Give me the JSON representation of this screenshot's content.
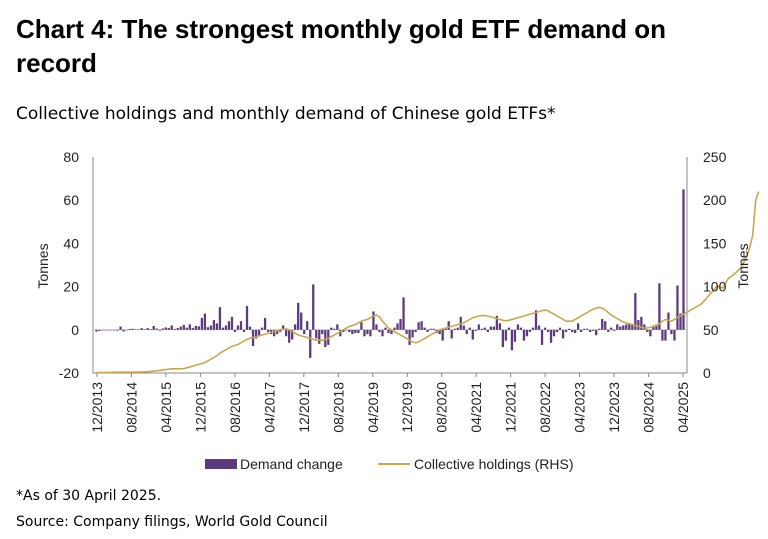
{
  "header": {
    "title": "Chart 4: The strongest monthly gold ETF demand on record",
    "subtitle": "Collective holdings and monthly demand of Chinese gold ETFs*"
  },
  "footer": {
    "footnote": "*As of 30 April 2025.",
    "source": "Source: Company filings, World Gold Council"
  },
  "colors": {
    "bar": "#5b3a7e",
    "line": "#c9a84c",
    "axis": "#888888"
  },
  "chart_data": {
    "type": "bar+line",
    "y_left": {
      "label": "Tonnes",
      "range": [
        -20,
        80
      ],
      "ticks": [
        -20,
        0,
        20,
        40,
        60,
        80
      ]
    },
    "y_right": {
      "label": "Tonnes",
      "range": [
        0,
        250
      ],
      "ticks": [
        0,
        50,
        100,
        150,
        200,
        250
      ]
    },
    "x_ticks": [
      "12/2013",
      "08/2014",
      "04/2015",
      "12/2015",
      "08/2016",
      "04/2017",
      "12/2017",
      "08/2018",
      "04/2019",
      "12/2019",
      "08/2020",
      "04/2021",
      "12/2021",
      "08/2022",
      "04/2023",
      "12/2023",
      "08/2024",
      "04/2025"
    ],
    "legend": [
      "Demand change",
      "Collective holdings (RHS)"
    ],
    "series": [
      {
        "name": "Demand change",
        "type": "bar",
        "axis": "left",
        "values": [
          -0.8,
          -0.5,
          -0.3,
          -0.2,
          -0.3,
          -0.2,
          -0.3,
          -0.4,
          1.5,
          -0.8,
          -0.2,
          0.4,
          0.5,
          0.2,
          0.2,
          0.8,
          0.2,
          0.8,
          0.3,
          1.8,
          0.6,
          -0.4,
          0.6,
          1.1,
          0.8,
          2.0,
          0.4,
          0.8,
          1.5,
          2.2,
          1.0,
          2.5,
          0.8,
          1.8,
          1.6,
          5.5,
          7.5,
          1.2,
          2.0,
          4.5,
          3.0,
          10.5,
          1.0,
          2.0,
          4.0,
          6.0,
          -1.0,
          2.0,
          4.0,
          -1.0,
          11.0,
          1.5,
          -7.5,
          -4.0,
          -3.0,
          1.0,
          5.5,
          -1.0,
          -2.0,
          -3.0,
          -2.0,
          -1.0,
          2.0,
          -3.0,
          -6.0,
          -4.5,
          2.5,
          12.5,
          8.0,
          -2.0,
          4.0,
          -13.0,
          21.0,
          -4.0,
          -6.5,
          -2.0,
          -8.0,
          -7.0,
          1.0,
          0.5,
          2.5,
          -3.0,
          -1.0,
          0.0,
          -1.0,
          -2.0,
          -1.5,
          -1.5,
          3.5,
          -3.0,
          -2.0,
          -3.0,
          8.5,
          2.5,
          -1.0,
          -3.0,
          1.0,
          -1.5,
          -2.0,
          1.0,
          3.0,
          5.0,
          15.0,
          -2.0,
          -7.0,
          -3.5,
          -1.0,
          3.5,
          4.0,
          1.0,
          -1.0,
          0.5,
          0.5,
          -1.5,
          -2.0,
          -5.0,
          0.5,
          4.0,
          -4.0,
          0.5,
          1.0,
          6.0,
          2.0,
          -2.0,
          1.0,
          -4.5,
          -0.5,
          2.5,
          0.5,
          1.0,
          -1.0,
          1.5,
          1.5,
          6.5,
          3.0,
          -8.0,
          -5.0,
          1.0,
          -9.5,
          -5.5,
          2.5,
          1.0,
          -5.0,
          -3.0,
          -1.0,
          1.0,
          9.0,
          2.0,
          -7.0,
          1.0,
          -1.0,
          -6.0,
          -3.0,
          -1.0,
          1.0,
          -4.0,
          -1.0,
          0.5,
          -1.0,
          -1.5,
          3.0,
          -1.0,
          0.5,
          0.5,
          -1.0,
          -0.5,
          -2.5,
          0.5,
          5.0,
          4.0,
          -1.0,
          1.0,
          -0.5,
          2.5,
          1.5,
          2.0,
          2.5,
          3.0,
          2.5,
          17.0,
          4.5,
          6.0,
          2.5,
          -1.0,
          -3.0,
          2.0,
          2.5,
          21.5,
          -5.0,
          -5.0,
          8.0,
          -2.0,
          -5.0,
          20.5,
          7.5,
          65.0
        ]
      },
      {
        "name": "Collective holdings (RHS)",
        "type": "line",
        "axis": "right",
        "values": [
          0.5,
          0.5,
          0.5,
          0.6,
          0.7,
          0.8,
          0.9,
          1.0,
          1.1,
          1.1,
          1.0,
          1.0,
          1.0,
          1.0,
          1.1,
          1.1,
          1.3,
          1.5,
          1.8,
          2.2,
          2.5,
          3.0,
          3.5,
          4.0,
          4.5,
          4.8,
          4.8,
          4.8,
          5.0,
          5.2,
          6.0,
          7.0,
          8.0,
          9.0,
          10.0,
          11.0,
          12.0,
          14.0,
          16.0,
          18.0,
          20.0,
          23.0,
          25.0,
          27.0,
          29.0,
          31.0,
          32.0,
          33.0,
          35.0,
          37.0,
          39.0,
          40.0,
          41.0,
          42.0,
          43.0,
          44.0,
          45.0,
          46.0,
          47.0,
          48.0,
          49.0,
          50.0,
          51.0,
          51.0,
          50.0,
          48.0,
          46.0,
          44.0,
          43.0,
          42.0,
          41.0,
          40.0,
          39.0,
          38.0,
          38.0,
          38.0,
          39.0,
          40.0,
          42.0,
          44.0,
          46.0,
          48.0,
          50.0,
          52.0,
          54.0,
          55.0,
          56.0,
          58.0,
          60.0,
          61.0,
          62.0,
          64.0,
          66.0,
          67.0,
          65.0,
          60.0,
          56.0,
          52.0,
          50.0,
          48.0,
          46.0,
          44.0,
          42.0,
          40.0,
          38.0,
          36.0,
          35.0,
          36.0,
          38.0,
          40.0,
          42.0,
          44.0,
          46.0,
          48.0,
          50.0,
          51.0,
          52.0,
          53.0,
          54.0,
          55.0,
          56.0,
          57.0,
          58.0,
          60.0,
          62.0,
          64.0,
          65.0,
          66.0,
          66.5,
          66.5,
          66.0,
          65.0,
          64.0,
          63.0,
          62.0,
          61.0,
          60.5,
          61.0,
          62.0,
          63.0,
          64.0,
          65.0,
          66.0,
          67.0,
          68.0,
          69.0,
          70.0,
          71.0,
          72.0,
          73.0,
          72.0,
          70.0,
          68.0,
          66.0,
          64.0,
          62.0,
          60.0,
          60.0,
          60.0,
          62.0,
          64.0,
          66.0,
          68.0,
          70.0,
          72.0,
          74.0,
          75.0,
          76.0,
          75.0,
          73.0,
          70.0,
          67.0,
          65.0,
          63.0,
          61.0,
          59.0,
          58.0,
          57.0,
          56.0,
          55.0,
          54.0,
          53.0,
          52.0,
          52.0,
          53.0,
          54.0,
          55.0,
          57.0,
          60.0,
          62.0,
          61.0,
          60.0,
          62.0,
          64.0,
          66.0,
          68.0,
          70.0,
          72.0,
          74.0,
          76.0,
          78.0,
          80.0,
          84.0,
          88.0,
          92.0,
          96.0,
          100.0,
          100.0,
          98.0,
          104.0,
          110.0,
          112.0,
          115.0,
          118.0,
          122.0,
          128.0,
          135.0,
          145.0,
          160.0,
          200.0,
          210.0
        ]
      }
    ]
  }
}
